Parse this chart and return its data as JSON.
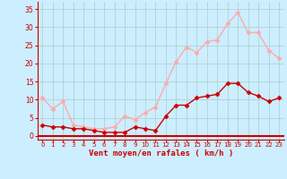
{
  "x": [
    0,
    1,
    2,
    3,
    4,
    5,
    6,
    7,
    8,
    9,
    10,
    11,
    12,
    13,
    14,
    15,
    16,
    17,
    18,
    19,
    20,
    21,
    22,
    23
  ],
  "wind_avg": [
    3,
    2.5,
    2.5,
    2,
    2,
    1.5,
    1,
    1,
    1,
    2.5,
    2,
    1.5,
    5.5,
    8.5,
    8.5,
    10.5,
    11,
    11.5,
    14.5,
    14.5,
    12,
    11,
    9.5,
    10.5
  ],
  "wind_gust": [
    10.5,
    7.5,
    9.5,
    3,
    2.5,
    2,
    2,
    2.5,
    5.5,
    4.5,
    6.5,
    8,
    14.5,
    20.5,
    24.5,
    23,
    26,
    26.5,
    31,
    34,
    28.5,
    28.5,
    23.5,
    21.5
  ],
  "avg_color": "#cc0000",
  "gust_color": "#ffaaaa",
  "bg_color": "#cceeff",
  "grid_color": "#aacccc",
  "xlabel": "Vent moyen/en rafales ( km/h )",
  "xlim": [
    -0.5,
    23.5
  ],
  "ylim": [
    -1,
    37
  ],
  "yticks": [
    0,
    5,
    10,
    15,
    20,
    25,
    30,
    35
  ],
  "xticks": [
    0,
    1,
    2,
    3,
    4,
    5,
    6,
    7,
    8,
    9,
    10,
    11,
    12,
    13,
    14,
    15,
    16,
    17,
    18,
    19,
    20,
    21,
    22,
    23
  ],
  "xlabel_color": "#cc0000",
  "tick_color": "#cc0000",
  "spine_color": "#cc0000",
  "red_line_color": "#cc0000",
  "marker": "D",
  "markersize": 2.5,
  "linewidth": 1.0
}
